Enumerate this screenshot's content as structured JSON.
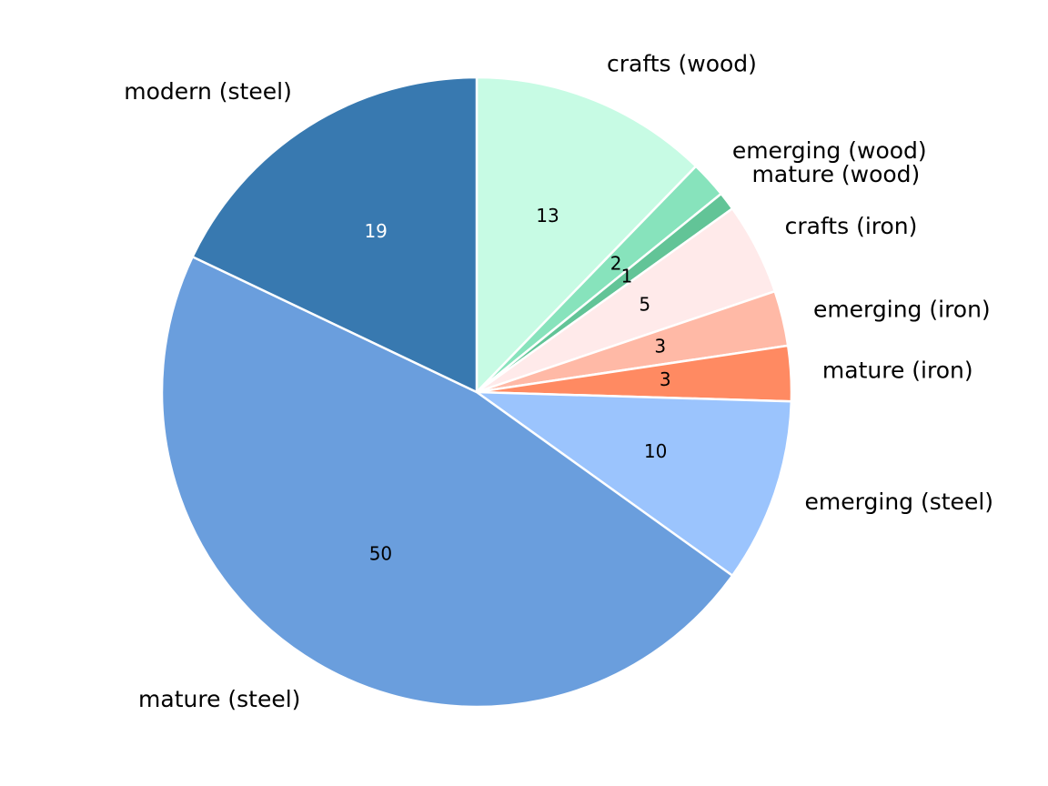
{
  "chart_data": {
    "type": "pie",
    "title": "",
    "slices": [
      {
        "label": "crafts (wood)",
        "value": 13,
        "color": "#c7fbe4",
        "value_text_color": "#000000"
      },
      {
        "label": "emerging (wood)",
        "value": 2,
        "color": "#87e3bc",
        "value_text_color": "#000000"
      },
      {
        "label": "mature (wood)",
        "value": 1,
        "color": "#62c497",
        "value_text_color": "#000000"
      },
      {
        "label": "crafts (iron)",
        "value": 5,
        "color": "#ffeaea",
        "value_text_color": "#000000"
      },
      {
        "label": "emerging (iron)",
        "value": 3,
        "color": "#ffb9a6",
        "value_text_color": "#000000"
      },
      {
        "label": "mature (iron)",
        "value": 3,
        "color": "#ff8a62",
        "value_text_color": "#000000"
      },
      {
        "label": "emerging (steel)",
        "value": 10,
        "color": "#9bc4fd",
        "value_text_color": "#000000"
      },
      {
        "label": "mature (steel)",
        "value": 50,
        "color": "#6a9edd",
        "value_text_color": "#000000"
      },
      {
        "label": "modern (steel)",
        "value": 19,
        "color": "#3879b0",
        "value_text_color": "#ffffff"
      }
    ],
    "start": "top",
    "direction": "clockwise",
    "legend": "none"
  }
}
